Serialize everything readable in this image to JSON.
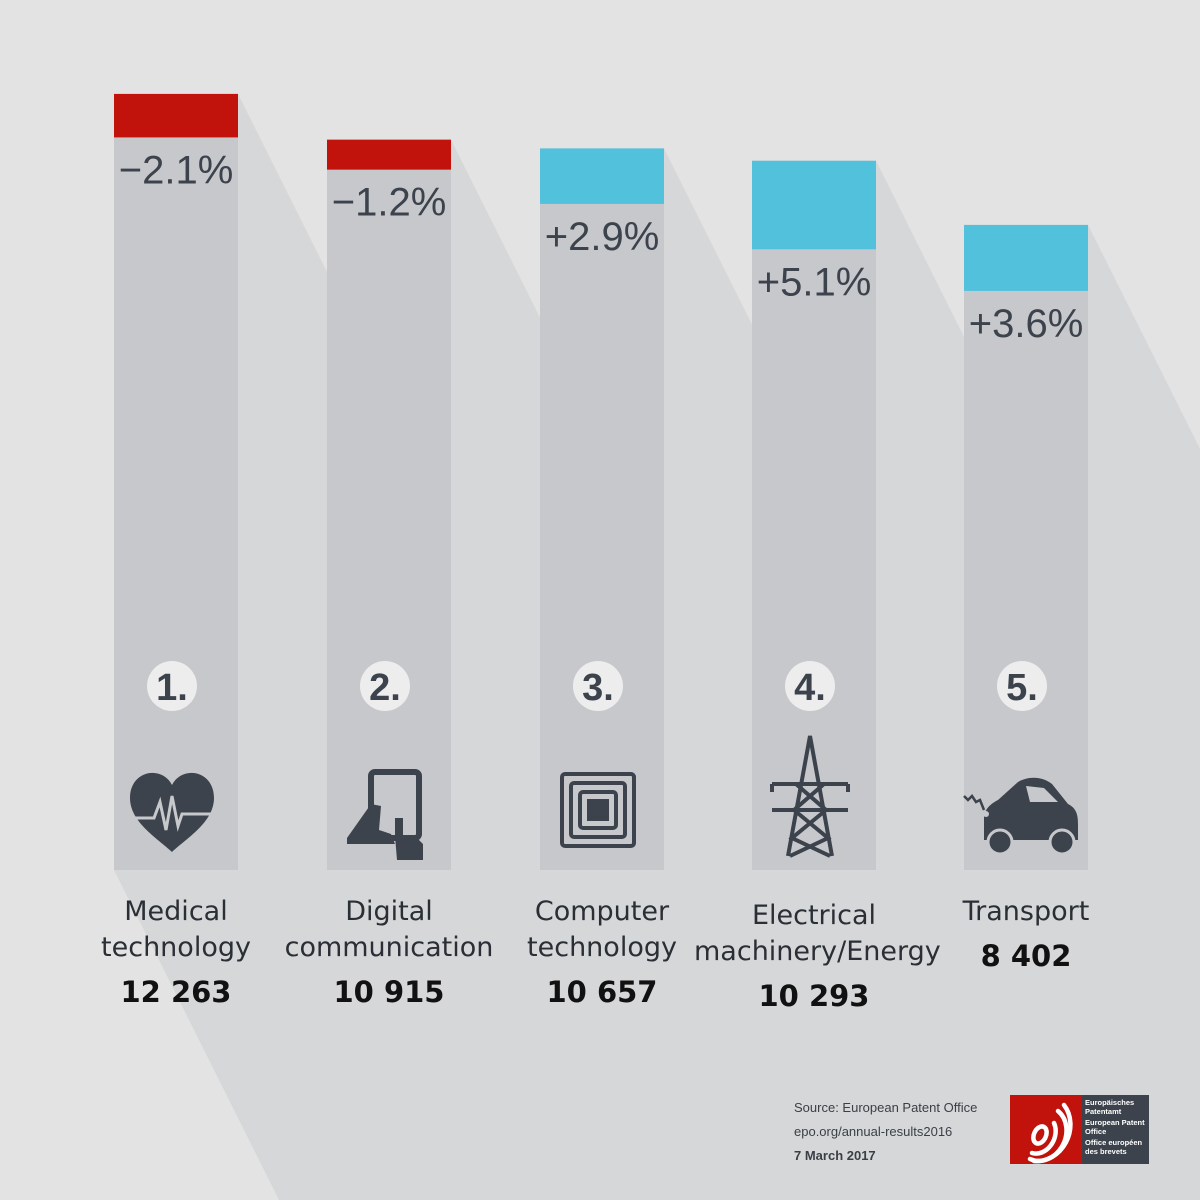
{
  "chart_data": {
    "type": "bar",
    "categories": [
      "Medical technology",
      "Digital communication",
      "Computer technology",
      "Electrical machinery/Energy",
      "Transport"
    ],
    "label_lines": [
      [
        "Medical",
        "technology"
      ],
      [
        "Digital",
        "communication"
      ],
      [
        "Computer",
        "technology"
      ],
      [
        "Electrical",
        "machinery/Energy"
      ],
      [
        "Transport"
      ]
    ],
    "values": [
      12263,
      10915,
      10657,
      10293,
      8402
    ],
    "value_labels": [
      "12 263",
      "10 915",
      "10 657",
      "10 293",
      "8 402"
    ],
    "change_pct": [
      -2.1,
      -1.2,
      2.9,
      5.1,
      3.6
    ],
    "change_labels": [
      "−2.1%",
      "−1.2%",
      "+2.9%",
      "+5.1%",
      "+3.6%"
    ],
    "ranks": [
      "1.",
      "2.",
      "3.",
      "4.",
      "5."
    ],
    "icons": [
      "heart-ecg-icon",
      "tablet-hand-icon",
      "chip-icon",
      "power-pylon-icon",
      "electric-car-icon"
    ],
    "colors": {
      "negative": "#c1120b",
      "positive": "#52c1dc",
      "bar": "#c7c8cc",
      "text": "#3c434c",
      "background": "#e3e3e3",
      "shadow": "#d6d7d8"
    }
  },
  "footer": {
    "source": "Source: European Patent Office",
    "url": "epo.org/annual-results2016",
    "date": "7 March 2017"
  },
  "logo": {
    "lines": [
      "Europäisches Patentamt",
      "European Patent Office",
      "Office européen des brevets"
    ]
  }
}
